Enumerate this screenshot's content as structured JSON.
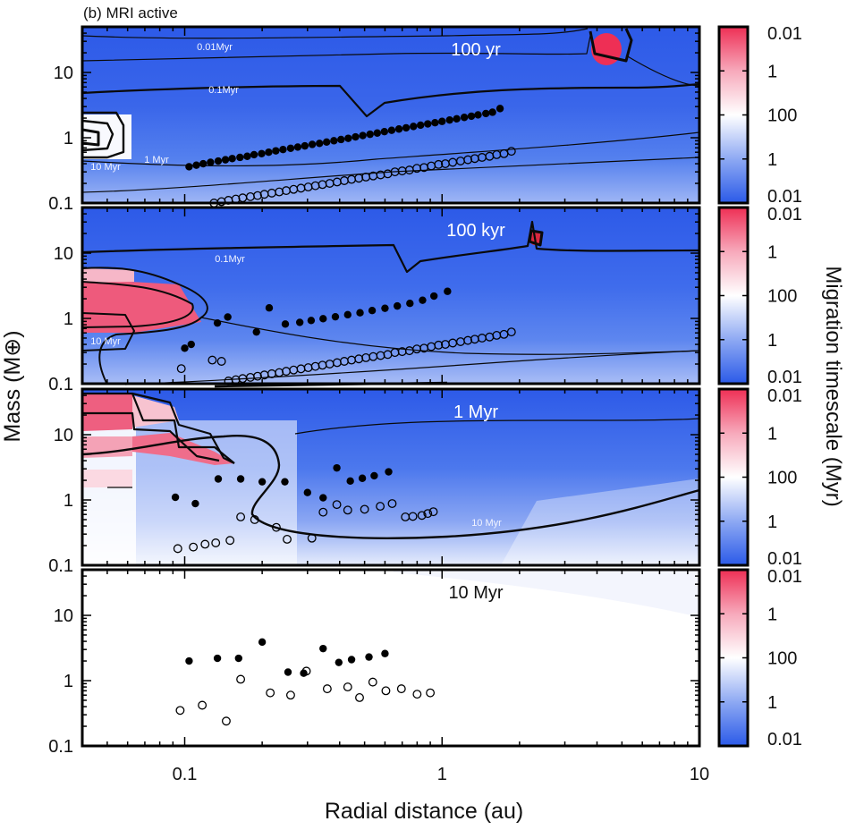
{
  "chart_data": {
    "type": "scatter",
    "title": "(b) MRI active",
    "xlabel": "Radial distance (au)",
    "ylabel": "Mass (M⊕)",
    "xscale": "log",
    "yscale": "log",
    "xlim": [
      0.04,
      10
    ],
    "ylim": [
      0.1,
      50
    ],
    "xticks": [
      "0.1",
      "1",
      "10"
    ],
    "yticks": [
      "0.1",
      "1",
      "10"
    ],
    "colorbar": {
      "label": "Migration timescale (Myr)",
      "ticks": [
        "0.01",
        "1",
        "100",
        "1",
        "0.01"
      ],
      "colors": {
        "inward": "#2b5ae8",
        "neutral": "#ffffff",
        "outward": "#ee2f55"
      }
    },
    "panels": [
      {
        "title": "100 yr",
        "contour_labels": [
          "0.01Myr",
          "0.1Myr",
          "1 Myr",
          "10 Myr"
        ],
        "filled": {
          "x": [
            0.104,
            0.111,
            0.118,
            0.126,
            0.135,
            0.144,
            0.153,
            0.164,
            0.175,
            0.186,
            0.199,
            0.212,
            0.226,
            0.241,
            0.258,
            0.275,
            0.293,
            0.313,
            0.334,
            0.356,
            0.38,
            0.405,
            0.432,
            0.461,
            0.492,
            0.525,
            0.56,
            0.597,
            0.637,
            0.68,
            0.725,
            0.774,
            0.825,
            0.88,
            0.939,
            1.0,
            1.07,
            1.14,
            1.22,
            1.3,
            1.38,
            1.48,
            1.57,
            1.68
          ],
          "y": [
            0.36,
            0.38,
            0.4,
            0.42,
            0.44,
            0.46,
            0.48,
            0.5,
            0.52,
            0.55,
            0.57,
            0.6,
            0.63,
            0.66,
            0.69,
            0.72,
            0.75,
            0.79,
            0.82,
            0.86,
            0.9,
            0.94,
            0.98,
            1.03,
            1.08,
            1.13,
            1.18,
            1.24,
            1.3,
            1.36,
            1.42,
            1.49,
            1.56,
            1.63,
            1.7,
            1.78,
            1.87,
            1.95,
            2.05,
            2.14,
            2.24,
            2.35,
            2.46,
            2.8
          ]
        },
        "open": {
          "x": [
            0.13,
            0.139,
            0.148,
            0.158,
            0.168,
            0.18,
            0.192,
            0.204,
            0.218,
            0.233,
            0.248,
            0.265,
            0.283,
            0.302,
            0.322,
            0.343,
            0.366,
            0.391,
            0.417,
            0.445,
            0.475,
            0.506,
            0.54,
            0.577,
            0.615,
            0.656,
            0.7,
            0.747,
            0.798,
            0.851,
            0.908,
            0.969,
            1.03,
            1.1,
            1.18,
            1.26,
            1.34,
            1.43,
            1.53,
            1.63,
            1.74,
            1.86
          ],
          "y": [
            0.1,
            0.105,
            0.11,
            0.115,
            0.12,
            0.125,
            0.13,
            0.136,
            0.142,
            0.148,
            0.155,
            0.162,
            0.169,
            0.176,
            0.184,
            0.192,
            0.2,
            0.21,
            0.22,
            0.23,
            0.24,
            0.25,
            0.26,
            0.27,
            0.28,
            0.3,
            0.31,
            0.32,
            0.34,
            0.35,
            0.37,
            0.39,
            0.4,
            0.42,
            0.44,
            0.46,
            0.48,
            0.5,
            0.52,
            0.55,
            0.57,
            0.62
          ]
        }
      },
      {
        "title": "100 kyr",
        "contour_labels": [
          "0.1Myr",
          "10 Myr"
        ],
        "filled": {
          "x": [
            0.1,
            0.106,
            0.134,
            0.147,
            0.19,
            0.213,
            0.246,
            0.28,
            0.31,
            0.345,
            0.385,
            0.43,
            0.48,
            0.535,
            0.6,
            0.67,
            0.75,
            0.84,
            0.93,
            1.05
          ],
          "y": [
            0.35,
            0.4,
            0.85,
            1.05,
            0.62,
            1.45,
            0.82,
            0.87,
            0.93,
            0.99,
            1.06,
            1.14,
            1.22,
            1.32,
            1.43,
            1.55,
            1.7,
            1.9,
            2.2,
            2.6
          ]
        },
        "open": {
          "x": [
            0.097,
            0.128,
            0.139,
            0.148,
            0.158,
            0.168,
            0.18,
            0.192,
            0.204,
            0.218,
            0.233,
            0.248,
            0.265,
            0.283,
            0.302,
            0.322,
            0.343,
            0.366,
            0.391,
            0.417,
            0.445,
            0.475,
            0.506,
            0.54,
            0.577,
            0.615,
            0.656,
            0.7,
            0.747,
            0.798,
            0.851,
            0.908,
            0.969,
            1.03,
            1.1,
            1.18,
            1.26,
            1.34,
            1.43,
            1.53,
            1.63,
            1.74,
            1.86
          ],
          "y": [
            0.17,
            0.23,
            0.22,
            0.11,
            0.115,
            0.12,
            0.125,
            0.13,
            0.136,
            0.142,
            0.148,
            0.155,
            0.162,
            0.169,
            0.176,
            0.184,
            0.192,
            0.2,
            0.21,
            0.22,
            0.23,
            0.24,
            0.25,
            0.26,
            0.27,
            0.28,
            0.3,
            0.31,
            0.32,
            0.34,
            0.35,
            0.37,
            0.39,
            0.4,
            0.42,
            0.44,
            0.46,
            0.48,
            0.5,
            0.52,
            0.55,
            0.57,
            0.62
          ]
        }
      },
      {
        "title": "1 Myr",
        "contour_labels": [
          "10 Myr"
        ],
        "filled": {
          "x": [
            0.092,
            0.11,
            0.135,
            0.165,
            0.2,
            0.245,
            0.3,
            0.345,
            0.39,
            0.44,
            0.49,
            0.545,
            0.62
          ],
          "y": [
            1.1,
            0.88,
            2.1,
            2.1,
            1.9,
            1.9,
            1.3,
            1.08,
            3.1,
            1.95,
            2.15,
            2.35,
            2.7
          ]
        },
        "open": {
          "x": [
            0.094,
            0.108,
            0.12,
            0.132,
            0.15,
            0.165,
            0.187,
            0.227,
            0.25,
            0.312,
            0.345,
            0.39,
            0.43,
            0.5,
            0.575,
            0.64,
            0.72,
            0.77,
            0.835,
            0.88,
            0.925
          ],
          "y": [
            0.18,
            0.19,
            0.21,
            0.22,
            0.24,
            0.55,
            0.5,
            0.38,
            0.25,
            0.26,
            0.65,
            0.85,
            0.7,
            0.72,
            0.8,
            0.88,
            0.55,
            0.56,
            0.58,
            0.62,
            0.66
          ]
        }
      },
      {
        "title": "10 Myr",
        "contour_labels": [],
        "filled": {
          "x": [
            0.104,
            0.134,
            0.162,
            0.2,
            0.252,
            0.29,
            0.345,
            0.397,
            0.445,
            0.52,
            0.6
          ],
          "y": [
            2.0,
            2.2,
            2.2,
            3.9,
            1.35,
            1.3,
            3.1,
            1.9,
            2.1,
            2.3,
            2.6
          ]
        },
        "open": {
          "x": [
            0.096,
            0.117,
            0.145,
            0.165,
            0.215,
            0.258,
            0.297,
            0.358,
            0.43,
            0.478,
            0.538,
            0.605,
            0.695,
            0.8,
            0.9
          ],
          "y": [
            0.35,
            0.42,
            0.24,
            1.05,
            0.65,
            0.6,
            1.4,
            0.75,
            0.8,
            0.55,
            0.95,
            0.7,
            0.75,
            0.62,
            0.65
          ]
        }
      }
    ]
  }
}
